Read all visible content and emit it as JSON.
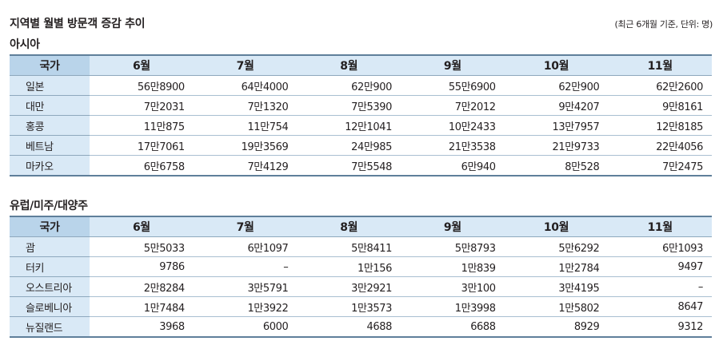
{
  "title": "지역별 월별 방문객 증감 추이",
  "note": "(최근 6개월 기준, 단위: 명)",
  "sections": [
    {
      "title": "아시아",
      "header": [
        "국가",
        "6월",
        "7월",
        "8월",
        "9월",
        "10월",
        "11월"
      ],
      "rows": [
        {
          "name": "일본",
          "values": [
            "56만8900",
            "64만4000",
            "62만900",
            "55만6900",
            "62만900",
            "62만2600"
          ]
        },
        {
          "name": "대만",
          "values": [
            "7만2031",
            "7만1320",
            "7만5390",
            "7만2012",
            "9만4207",
            "9만8161"
          ]
        },
        {
          "name": "홍콩",
          "values": [
            "11만875",
            "11만754",
            "12만1041",
            "10만2433",
            "13만7957",
            "12만8185"
          ]
        },
        {
          "name": "베트남",
          "values": [
            "17만7061",
            "19만3569",
            "24만985",
            "21만3538",
            "21만9733",
            "22만4056"
          ]
        },
        {
          "name": "마카오",
          "values": [
            "6만6758",
            "7만4129",
            "7만5548",
            "6만940",
            "8만528",
            "7만2475"
          ]
        }
      ]
    },
    {
      "title": "유럽/미주/대양주",
      "header": [
        "국가",
        "6월",
        "7월",
        "8월",
        "9월",
        "10월",
        "11월"
      ],
      "rows": [
        {
          "name": "괌",
          "values": [
            "5만5033",
            "6만1097",
            "5만8411",
            "5만8793",
            "5만6292",
            "6만1093"
          ]
        },
        {
          "name": "터키",
          "values": [
            "9786",
            "–",
            "1만156",
            "1만839",
            "1만2784",
            "9497"
          ]
        },
        {
          "name": "오스트리아",
          "values": [
            "2만8284",
            "3만5791",
            "3만2921",
            "3만100",
            "3만4195",
            "–"
          ]
        },
        {
          "name": "슬로베니아",
          "values": [
            "1만7484",
            "1만3922",
            "1만3573",
            "1만3998",
            "1만5802",
            "8647"
          ]
        },
        {
          "name": "뉴질랜드",
          "values": [
            "3968",
            "6000",
            "4688",
            "6688",
            "8929",
            "9312"
          ]
        }
      ]
    }
  ]
}
